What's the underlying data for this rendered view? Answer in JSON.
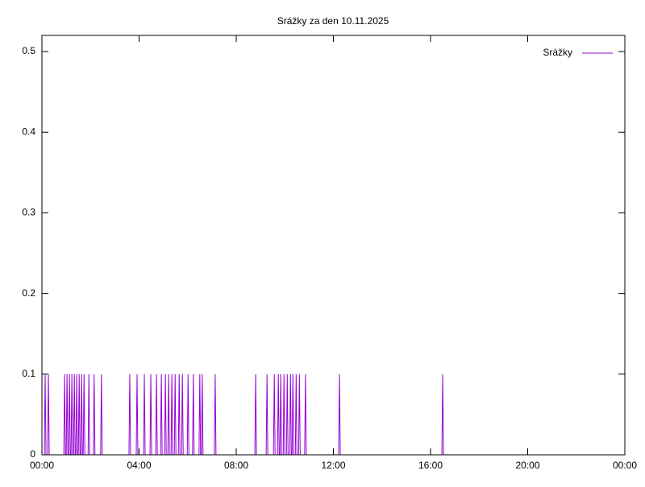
{
  "chart_data": {
    "type": "line",
    "title": "Srážky za den 10.11.2025",
    "x": [
      0,
      6,
      8,
      10,
      14,
      16,
      18,
      54,
      56,
      58,
      60,
      62,
      64,
      66,
      68,
      70,
      72,
      74,
      76,
      78,
      80,
      82,
      84,
      86,
      88,
      90,
      92,
      94,
      96,
      98,
      100,
      102,
      104,
      106,
      114,
      116,
      118,
      127,
      129,
      131,
      145,
      147,
      149,
      215,
      217,
      219,
      233,
      235,
      237,
      251,
      253,
      255,
      267,
      269,
      271,
      281,
      283,
      285,
      293,
      295,
      297,
      303,
      305,
      307,
      311,
      313,
      315,
      319,
      321,
      323,
      327,
      329,
      331,
      337,
      339,
      341,
      345,
      347,
      349,
      359,
      361,
      363,
      372,
      374,
      376,
      388,
      390,
      392,
      394,
      396,
      398,
      426,
      428,
      430,
      526,
      528,
      530,
      554,
      556,
      558,
      572,
      574,
      576,
      582,
      584,
      586,
      588,
      590,
      592,
      596,
      598,
      600,
      604,
      606,
      608,
      612,
      614,
      616,
      618,
      620,
      622,
      626,
      628,
      630,
      634,
      636,
      638,
      649,
      651,
      653,
      733,
      735,
      737,
      988,
      990,
      992
    ],
    "series": [
      {
        "name": "Srážky",
        "color": "#9400d3",
        "values": [
          0,
          0,
          0.1,
          0,
          0,
          0.1,
          0,
          0,
          0.1,
          0,
          0,
          0.1,
          0,
          0,
          0.1,
          0,
          0,
          0.1,
          0,
          0,
          0.1,
          0,
          0,
          0.1,
          0,
          0,
          0.1,
          0,
          0,
          0.1,
          0,
          0,
          0.1,
          0,
          0,
          0.1,
          0,
          0,
          0.1,
          0,
          0,
          0.1,
          0,
          0,
          0.1,
          0,
          0,
          0.1,
          0,
          0,
          0.1,
          0,
          0,
          0.1,
          0,
          0,
          0.1,
          0,
          0,
          0.1,
          0,
          0,
          0.1,
          0,
          0,
          0.1,
          0,
          0,
          0.1,
          0,
          0,
          0.1,
          0,
          0,
          0.1,
          0,
          0,
          0.1,
          0,
          0,
          0.1,
          0,
          0,
          0.1,
          0,
          0,
          0.1,
          0,
          0,
          0.1,
          0,
          0,
          0.1,
          0,
          0,
          0.1,
          0,
          0,
          0.1,
          0,
          0,
          0.1,
          0,
          0,
          0.1,
          0,
          0,
          0.1,
          0,
          0,
          0.1,
          0,
          0,
          0.1,
          0,
          0,
          0.1,
          0,
          0,
          0.1,
          0,
          0,
          0.1,
          0,
          0,
          0.1,
          0,
          0,
          0.1,
          0,
          0,
          0.1,
          0,
          0,
          0.1,
          0
        ]
      }
    ],
    "xlim": [
      0,
      1440
    ],
    "xticks": [
      {
        "value": 0,
        "label": "00:00"
      },
      {
        "value": 240,
        "label": "04:00"
      },
      {
        "value": 480,
        "label": "08:00"
      },
      {
        "value": 720,
        "label": "12:00"
      },
      {
        "value": 960,
        "label": "16:00"
      },
      {
        "value": 1200,
        "label": "20:00"
      },
      {
        "value": 1440,
        "label": "00:00"
      }
    ],
    "ylim": [
      0,
      0.52
    ],
    "yticks": [
      0,
      0.1,
      0.2,
      0.3,
      0.4,
      0.5
    ],
    "legend": "top-right"
  }
}
